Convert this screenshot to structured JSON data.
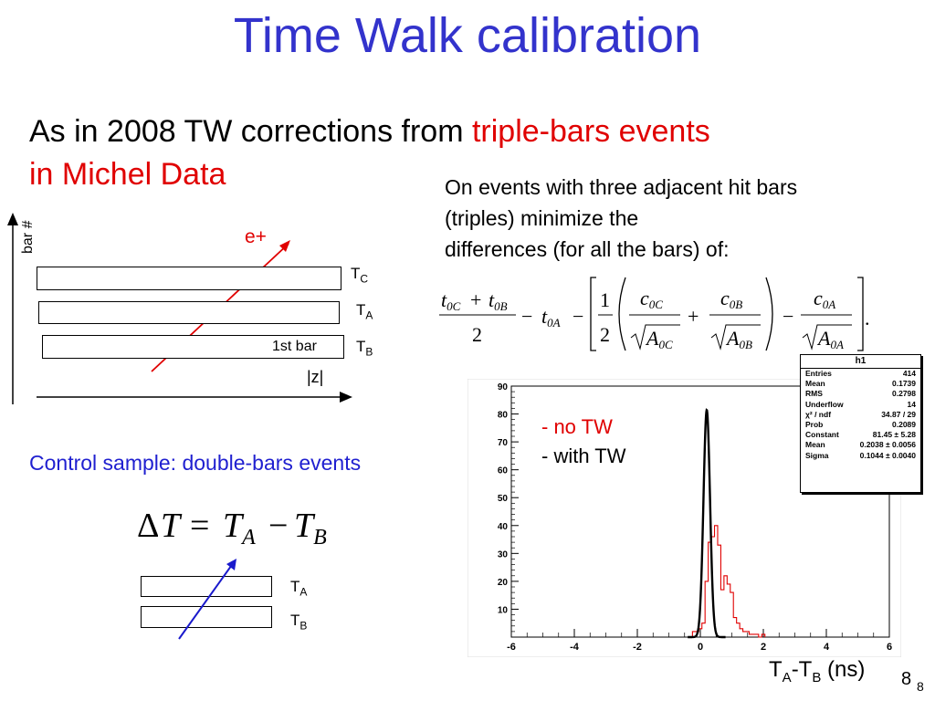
{
  "title": "Time Walk calibration",
  "intro": {
    "text": "As in 2008 TW corrections from ",
    "highlight": "triple-bars events",
    "line2": "in Michel Data"
  },
  "diagram1": {
    "y_axis_label": "bar #",
    "particle_label": "e+",
    "bar_C": "T",
    "bar_C_sub": "C",
    "bar_A": "T",
    "bar_A_sub": "A",
    "bar_B": "T",
    "bar_B_sub": "B",
    "first_bar_label": "1st bar",
    "z_label": "|z|"
  },
  "triples_text": {
    "line1": "On events with three adjacent hit bars",
    "line2": "(triples) minimize the",
    "line3": "differences (for all the bars) of:"
  },
  "formula": {
    "t0C": "t",
    "sub_0C": "0C",
    "t0B": "t",
    "sub_0B": "0B",
    "t0A": "t",
    "sub_0A": "0A",
    "two": "2",
    "one": "1",
    "minus": "−",
    "plus": "+",
    "c": "c",
    "A": "A",
    "period": "."
  },
  "control_sample": "Control sample: double-bars events",
  "delta_formula": {
    "delta": "Δ",
    "T": "T",
    "eq": "=",
    "TA": "T",
    "A_sub": "A",
    "minus": "−",
    "TB": "T",
    "B_sub": "B"
  },
  "diagram2": {
    "bar_A": "T",
    "bar_A_sub": "A",
    "bar_B": "T",
    "bar_B_sub": "B"
  },
  "stats_box": {
    "title": "h1",
    "rows": [
      {
        "key": "Entries",
        "val": "414"
      },
      {
        "key": "Mean",
        "val": "0.1739"
      },
      {
        "key": "RMS",
        "val": "0.2798"
      },
      {
        "key": "Underflow",
        "val": "14"
      },
      {
        "key": "χ² / ndf",
        "val": "34.87 / 29"
      },
      {
        "key": "Prob",
        "val": "0.2089"
      },
      {
        "key": "Constant",
        "val": "81.45 ± 5.28"
      },
      {
        "key": "Mean",
        "val": "0.2038 ± 0.0056"
      },
      {
        "key": "Sigma",
        "val": "0.1044 ± 0.0040"
      }
    ]
  },
  "legend": {
    "no_tw": "- no TW",
    "with_tw": "- with TW"
  },
  "x_title": {
    "t1": "T",
    "s1": "A",
    "mid": "-T",
    "s2": "B",
    "unit": " (ns)"
  },
  "page_number": "8",
  "page_number_small": "8",
  "colors": {
    "title": "#3333cc",
    "highlight": "#e00000",
    "control": "#2020d0",
    "no_tw": "#e00000",
    "with_tw": "#000000"
  },
  "chart_data": {
    "type": "line",
    "title": "",
    "xlabel": "TA-TB (ns)",
    "ylabel": "",
    "xlim": [
      -6,
      6
    ],
    "ylim": [
      0,
      90
    ],
    "x_ticks": [
      -6,
      -4,
      -2,
      0,
      2,
      4,
      6
    ],
    "y_ticks": [
      0,
      10,
      20,
      30,
      40,
      50,
      60,
      70,
      80,
      90
    ],
    "series": [
      {
        "name": "- no TW",
        "color": "#e00000",
        "kind": "histogram",
        "x": [
          -0.2,
          -0.1,
          0.0,
          0.1,
          0.2,
          0.3,
          0.4,
          0.5,
          0.6,
          0.7,
          0.8,
          0.9,
          1.0,
          1.1,
          1.2,
          1.3,
          1.4,
          1.5,
          1.6,
          1.7,
          1.8,
          1.9,
          2.0
        ],
        "values": [
          2,
          2,
          3,
          5,
          20,
          34,
          36,
          40,
          33,
          17,
          22,
          19,
          16,
          7,
          5,
          3,
          2,
          2,
          1,
          1,
          1,
          0,
          1
        ]
      },
      {
        "name": "- with TW",
        "color": "#000000",
        "kind": "gaussian_fit",
        "constant": 81.45,
        "mean": 0.2038,
        "sigma": 0.1044
      }
    ]
  }
}
